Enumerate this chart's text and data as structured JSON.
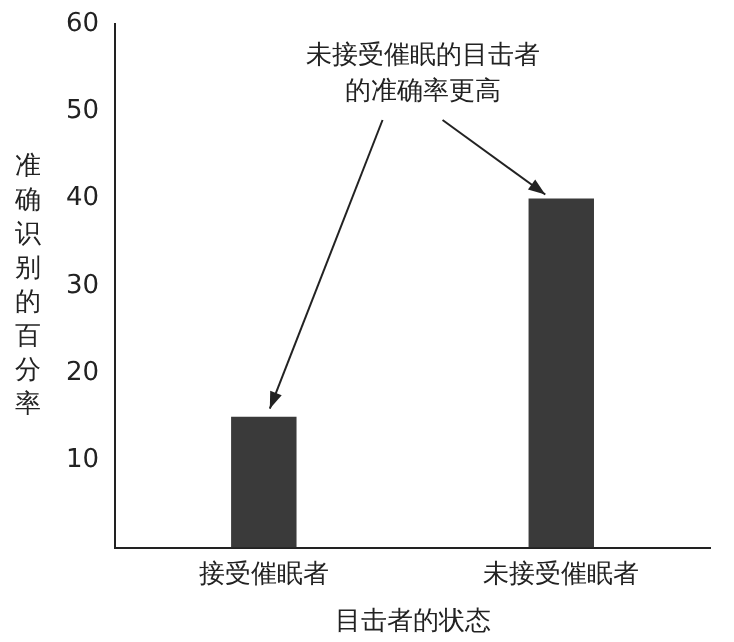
{
  "chart_data": {
    "type": "bar",
    "categories": [
      "接受催眠者",
      "未接受催眠者"
    ],
    "values": [
      15,
      40
    ],
    "color": "#3a3a3a",
    "ylim": [
      0,
      60
    ],
    "yticks": [
      10,
      20,
      30,
      40,
      50,
      60
    ],
    "xlabel": "目击者的状态",
    "ylabel": "准确识别的百分率",
    "annotations": [
      {
        "text": "未接受催眠的目击者的准确率更高",
        "x": "未接受催眠者",
        "y": 40
      }
    ],
    "grid": false,
    "legend": false
  }
}
